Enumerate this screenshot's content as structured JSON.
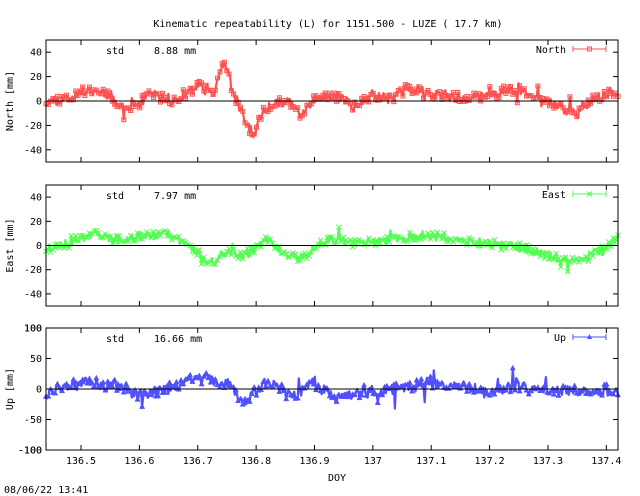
{
  "title": "Kinematic repeatability (L) for 1151.500 - LUZE  ( 17.7 km)",
  "timestamp": "08/06/22 13:41",
  "colors": {
    "north": "#ff5050",
    "east": "#50ff50",
    "up": "#5050ff",
    "axis": "#000000"
  },
  "chart_data": [
    {
      "type": "line",
      "panel": "north",
      "title": "",
      "ylabel": "North [mm]",
      "xlabel": "",
      "legend": "North",
      "legend_position": "top-right",
      "std_label": "std",
      "std_value": "8.88 mm",
      "xlim": [
        136.44,
        137.42
      ],
      "ylim": [
        -50,
        50
      ],
      "yticks": [
        -40,
        -20,
        0,
        20,
        40
      ],
      "xticks": [
        136.5,
        136.6,
        136.7,
        136.8,
        136.9,
        137.0,
        137.1,
        137.2,
        137.3,
        137.4
      ],
      "shape": [
        [
          136.44,
          0
        ],
        [
          136.48,
          3
        ],
        [
          136.52,
          10
        ],
        [
          136.55,
          5
        ],
        [
          136.58,
          -8
        ],
        [
          136.62,
          5
        ],
        [
          136.66,
          0
        ],
        [
          136.7,
          12
        ],
        [
          136.73,
          8
        ],
        [
          136.745,
          33
        ],
        [
          136.76,
          8
        ],
        [
          136.775,
          -10
        ],
        [
          136.795,
          -28
        ],
        [
          136.81,
          -10
        ],
        [
          136.84,
          0
        ],
        [
          136.86,
          -3
        ],
        [
          136.88,
          -12
        ],
        [
          136.9,
          2
        ],
        [
          136.94,
          4
        ],
        [
          136.97,
          -5
        ],
        [
          137.0,
          6
        ],
        [
          137.03,
          2
        ],
        [
          137.06,
          10
        ],
        [
          137.1,
          5
        ],
        [
          137.14,
          3
        ],
        [
          137.18,
          3
        ],
        [
          137.22,
          7
        ],
        [
          137.25,
          10
        ],
        [
          137.28,
          2
        ],
        [
          137.32,
          -5
        ],
        [
          137.35,
          -10
        ],
        [
          137.38,
          2
        ],
        [
          137.42,
          8
        ]
      ],
      "noise": 6,
      "spikes": 12,
      "seed": 11
    },
    {
      "type": "line",
      "panel": "east",
      "title": "",
      "ylabel": "East [mm]",
      "xlabel": "",
      "legend": "East",
      "legend_position": "top-right",
      "std_label": "std",
      "std_value": "7.97 mm",
      "xlim": [
        136.44,
        137.42
      ],
      "ylim": [
        -50,
        50
      ],
      "yticks": [
        -40,
        -20,
        0,
        20,
        40
      ],
      "xticks": [
        136.5,
        136.6,
        136.7,
        136.8,
        136.9,
        137.0,
        137.1,
        137.2,
        137.3,
        137.4
      ],
      "shape": [
        [
          136.44,
          -3
        ],
        [
          136.48,
          2
        ],
        [
          136.52,
          10
        ],
        [
          136.56,
          5
        ],
        [
          136.6,
          8
        ],
        [
          136.65,
          10
        ],
        [
          136.7,
          -5
        ],
        [
          136.72,
          -15
        ],
        [
          136.75,
          -5
        ],
        [
          136.78,
          -8
        ],
        [
          136.82,
          5
        ],
        [
          136.85,
          -8
        ],
        [
          136.88,
          -10
        ],
        [
          136.92,
          5
        ],
        [
          136.96,
          2
        ],
        [
          137.0,
          3
        ],
        [
          137.04,
          5
        ],
        [
          137.08,
          8
        ],
        [
          137.12,
          7
        ],
        [
          137.16,
          3
        ],
        [
          137.2,
          2
        ],
        [
          137.24,
          0
        ],
        [
          137.28,
          -5
        ],
        [
          137.32,
          -10
        ],
        [
          137.36,
          -12
        ],
        [
          137.4,
          0
        ],
        [
          137.42,
          5
        ]
      ],
      "noise": 5,
      "spikes": 10,
      "seed": 23
    },
    {
      "type": "line",
      "panel": "up",
      "title": "",
      "ylabel": "Up [mm]",
      "xlabel": "DOY",
      "legend": "Up",
      "legend_position": "top-right",
      "std_label": "std",
      "std_value": "16.66 mm",
      "xlim": [
        136.44,
        137.42
      ],
      "ylim": [
        -100,
        100
      ],
      "yticks": [
        -100,
        -50,
        0,
        50,
        100
      ],
      "xtick_labels": [
        "136.5",
        "136.6",
        "136.7",
        "136.8",
        "136.9",
        "137",
        "137.1",
        "137.2",
        "137.3",
        "137.4"
      ],
      "xticks": [
        136.5,
        136.6,
        136.7,
        136.8,
        136.9,
        137.0,
        137.1,
        137.2,
        137.3,
        137.4
      ],
      "shape": [
        [
          136.44,
          -8
        ],
        [
          136.5,
          10
        ],
        [
          136.56,
          5
        ],
        [
          136.6,
          -10
        ],
        [
          136.65,
          0
        ],
        [
          136.7,
          20
        ],
        [
          136.75,
          10
        ],
        [
          136.78,
          -20
        ],
        [
          136.82,
          15
        ],
        [
          136.86,
          -15
        ],
        [
          136.9,
          10
        ],
        [
          136.94,
          -15
        ],
        [
          137.0,
          -5
        ],
        [
          137.05,
          0
        ],
        [
          137.1,
          10
        ],
        [
          137.15,
          5
        ],
        [
          137.2,
          -5
        ],
        [
          137.25,
          5
        ],
        [
          137.3,
          -5
        ],
        [
          137.35,
          0
        ],
        [
          137.42,
          -3
        ]
      ],
      "noise": 13,
      "spikes": 18,
      "seed": 37
    }
  ]
}
